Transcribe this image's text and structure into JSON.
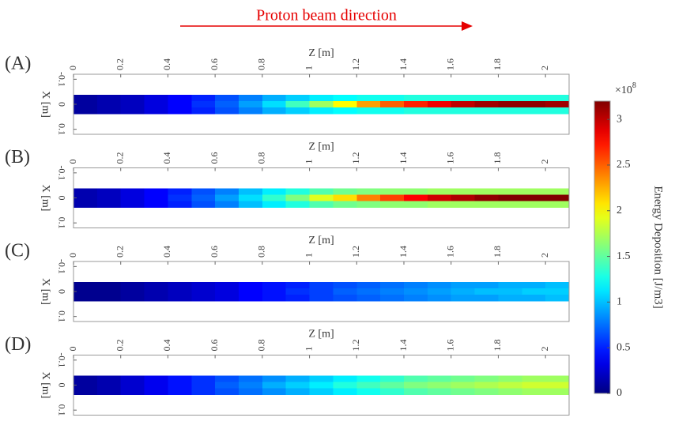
{
  "annotation": "Proton beam direction",
  "chart_data": [
    {
      "type": "heatmap",
      "label": "(A)",
      "xlabel": "Z [m]",
      "ylabel": "X [m]",
      "colormap": "jet",
      "yreverse": true,
      "xlim": [
        0,
        2.1
      ],
      "xticks": [
        0,
        0.2,
        0.4,
        0.6,
        0.8,
        1,
        1.2,
        1.4,
        1.6,
        1.8,
        2
      ],
      "ylim": [
        -0.12,
        0.12
      ],
      "yticks": [
        -0.1,
        0,
        0.1
      ],
      "x": [
        0.05,
        0.15,
        0.25,
        0.35,
        0.45,
        0.55,
        0.65,
        0.75,
        0.85,
        0.95,
        1.05,
        1.15,
        1.25,
        1.35,
        1.45,
        1.55,
        1.65,
        1.75,
        1.85,
        1.95,
        2.05
      ],
      "y": [
        -0.025,
        0,
        0.025
      ],
      "values": [
        [
          0.1,
          0.15,
          0.2,
          0.3,
          0.4,
          0.5,
          0.65,
          0.8,
          0.95,
          1.05,
          1.15,
          1.2,
          1.25,
          1.25,
          1.3,
          1.3,
          1.3,
          1.3,
          1.3,
          1.3,
          1.3
        ],
        [
          0.1,
          0.15,
          0.2,
          0.3,
          0.4,
          0.55,
          0.7,
          0.9,
          1.1,
          1.4,
          1.7,
          2.0,
          2.3,
          2.5,
          2.7,
          2.85,
          3.0,
          3.1,
          3.15,
          3.15,
          3.1
        ],
        [
          0.1,
          0.15,
          0.2,
          0.3,
          0.4,
          0.5,
          0.65,
          0.8,
          0.95,
          1.05,
          1.15,
          1.2,
          1.25,
          1.25,
          1.3,
          1.3,
          1.3,
          1.3,
          1.3,
          1.3,
          1.3
        ]
      ]
    },
    {
      "type": "heatmap",
      "label": "(B)",
      "xlabel": "Z [m]",
      "ylabel": "X [m]",
      "colormap": "jet",
      "yreverse": true,
      "xlim": [
        0,
        2.1
      ],
      "xticks": [
        0,
        0.2,
        0.4,
        0.6,
        0.8,
        1,
        1.2,
        1.4,
        1.6,
        1.8,
        2
      ],
      "ylim": [
        -0.12,
        0.12
      ],
      "yticks": [
        -0.1,
        0,
        0.1
      ],
      "x": [
        0.05,
        0.15,
        0.25,
        0.35,
        0.45,
        0.55,
        0.65,
        0.75,
        0.85,
        0.95,
        1.05,
        1.15,
        1.25,
        1.35,
        1.45,
        1.55,
        1.65,
        1.75,
        1.85,
        1.95,
        2.05
      ],
      "y": [
        -0.025,
        0,
        0.025
      ],
      "values": [
        [
          0.15,
          0.2,
          0.3,
          0.4,
          0.5,
          0.65,
          0.8,
          1.0,
          1.15,
          1.3,
          1.45,
          1.55,
          1.6,
          1.65,
          1.65,
          1.7,
          1.7,
          1.7,
          1.7,
          1.7,
          1.7
        ],
        [
          0.15,
          0.2,
          0.3,
          0.4,
          0.55,
          0.7,
          0.9,
          1.1,
          1.35,
          1.6,
          1.9,
          2.1,
          2.4,
          2.6,
          2.8,
          2.95,
          3.05,
          3.15,
          3.2,
          3.2,
          3.2
        ],
        [
          0.15,
          0.2,
          0.3,
          0.4,
          0.5,
          0.65,
          0.8,
          1.0,
          1.15,
          1.3,
          1.45,
          1.55,
          1.6,
          1.65,
          1.65,
          1.7,
          1.7,
          1.7,
          1.7,
          1.7,
          1.7
        ]
      ]
    },
    {
      "type": "heatmap",
      "label": "(C)",
      "xlabel": "Z [m]",
      "ylabel": "X [m]",
      "colormap": "jet",
      "yreverse": true,
      "xlim": [
        0,
        2.1
      ],
      "xticks": [
        0,
        0.2,
        0.4,
        0.6,
        0.8,
        1,
        1.2,
        1.4,
        1.6,
        1.8,
        2
      ],
      "ylim": [
        -0.12,
        0.12
      ],
      "yticks": [
        -0.1,
        0,
        0.1
      ],
      "x": [
        0.05,
        0.15,
        0.25,
        0.35,
        0.45,
        0.55,
        0.65,
        0.75,
        0.85,
        0.95,
        1.05,
        1.15,
        1.25,
        1.35,
        1.45,
        1.55,
        1.65,
        1.75,
        1.85,
        1.95,
        2.05
      ],
      "y": [
        -0.025,
        0,
        0.025
      ],
      "values": [
        [
          0.05,
          0.05,
          0.1,
          0.15,
          0.2,
          0.25,
          0.3,
          0.4,
          0.45,
          0.5,
          0.6,
          0.65,
          0.7,
          0.75,
          0.8,
          0.85,
          0.9,
          0.9,
          0.95,
          0.95,
          1.0
        ],
        [
          0.05,
          0.05,
          0.1,
          0.15,
          0.2,
          0.25,
          0.3,
          0.4,
          0.45,
          0.55,
          0.6,
          0.7,
          0.75,
          0.8,
          0.85,
          0.9,
          0.95,
          1.0,
          1.0,
          1.05,
          1.05
        ],
        [
          0.05,
          0.05,
          0.1,
          0.15,
          0.2,
          0.25,
          0.3,
          0.4,
          0.45,
          0.5,
          0.6,
          0.65,
          0.7,
          0.75,
          0.8,
          0.85,
          0.9,
          0.9,
          0.95,
          0.95,
          1.0
        ]
      ]
    },
    {
      "type": "heatmap",
      "label": "(D)",
      "xlabel": "Z [m]",
      "ylabel": "X [m]",
      "colormap": "jet",
      "yreverse": true,
      "xlim": [
        0,
        2.1
      ],
      "xticks": [
        0,
        0.2,
        0.4,
        0.6,
        0.8,
        1,
        1.2,
        1.4,
        1.6,
        1.8,
        2
      ],
      "ylim": [
        -0.12,
        0.12
      ],
      "yticks": [
        -0.1,
        0,
        0.1
      ],
      "x": [
        0.05,
        0.15,
        0.25,
        0.35,
        0.45,
        0.55,
        0.65,
        0.75,
        0.85,
        0.95,
        1.05,
        1.15,
        1.25,
        1.35,
        1.45,
        1.55,
        1.65,
        1.75,
        1.85,
        1.95,
        2.05
      ],
      "y": [
        -0.025,
        0,
        0.025
      ],
      "values": [
        [
          0.1,
          0.15,
          0.25,
          0.35,
          0.45,
          0.55,
          0.65,
          0.75,
          0.85,
          0.95,
          1.05,
          1.15,
          1.25,
          1.35,
          1.45,
          1.5,
          1.55,
          1.6,
          1.65,
          1.7,
          1.7
        ],
        [
          0.1,
          0.15,
          0.25,
          0.35,
          0.45,
          0.55,
          0.7,
          0.8,
          0.95,
          1.05,
          1.15,
          1.3,
          1.4,
          1.5,
          1.6,
          1.65,
          1.7,
          1.75,
          1.8,
          1.85,
          1.85
        ],
        [
          0.1,
          0.15,
          0.25,
          0.35,
          0.45,
          0.55,
          0.65,
          0.75,
          0.85,
          0.95,
          1.05,
          1.15,
          1.25,
          1.35,
          1.45,
          1.5,
          1.55,
          1.6,
          1.65,
          1.7,
          1.7
        ]
      ]
    }
  ],
  "colorbar": {
    "label": "Energy Deposition [J/m3]",
    "multiplier": "×10",
    "exponent": "8",
    "colormap": "jet",
    "clim": [
      0,
      3.2
    ],
    "ticks": [
      0,
      0.5,
      1,
      1.5,
      2,
      2.5,
      3
    ]
  }
}
